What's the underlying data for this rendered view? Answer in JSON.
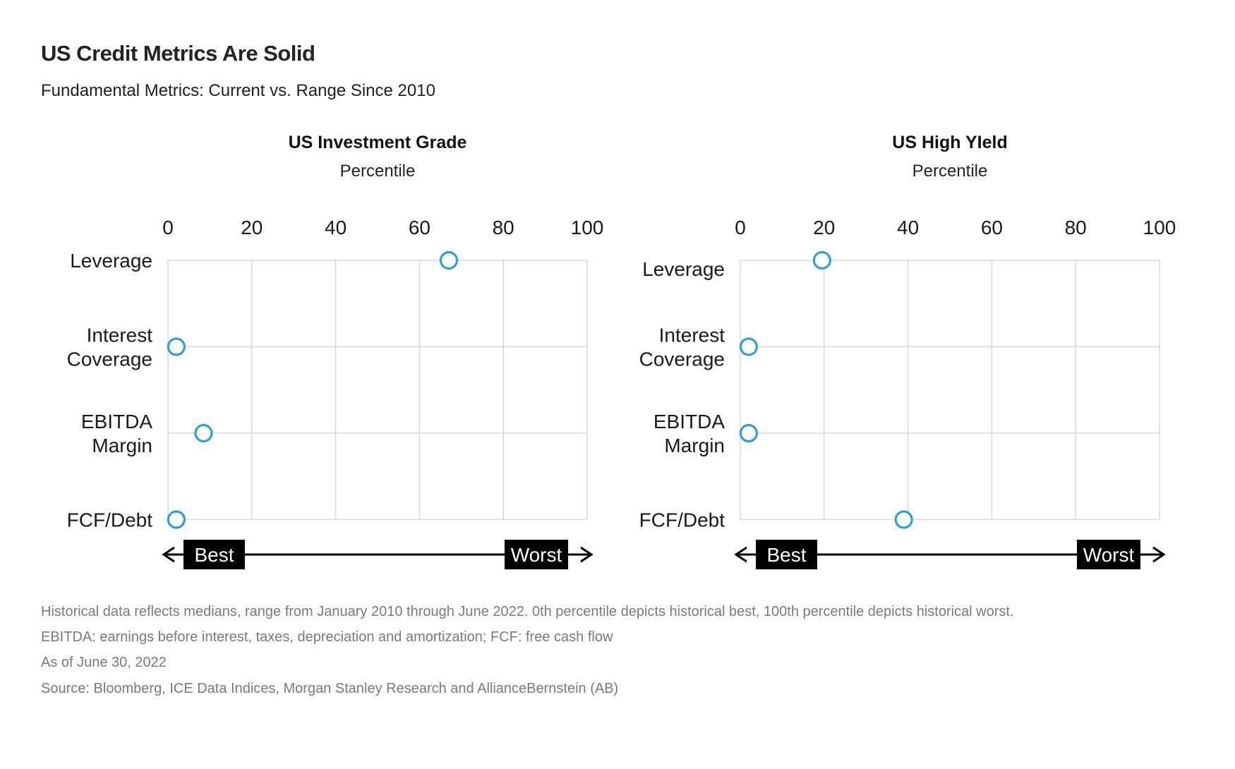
{
  "header": {
    "title": "US Credit Metrics Are Solid",
    "subtitle": "Fundamental Metrics: Current vs. Range Since 2010"
  },
  "colors": {
    "accent_point_stroke": "#2e9fd8",
    "gridline": "#d9d9d9",
    "axis_text": "#1a1a1a",
    "annotation_bg": "#000000",
    "annotation_text": "#ffffff",
    "footnote_text": "#7a7a7a"
  },
  "chart_data": [
    {
      "type": "scatter",
      "title": "US Investment Grade",
      "axis_label": "Percentile",
      "categories": [
        "Leverage",
        "Interest Coverage",
        "EBITDA Margin",
        "FCF/Debt"
      ],
      "category_lines": [
        [
          "Leverage"
        ],
        [
          "Interest",
          "Coverage"
        ],
        [
          "EBITDA",
          "Margin"
        ],
        [
          "FCF/Debt"
        ]
      ],
      "values": [
        67,
        2,
        8.5,
        2
      ],
      "xlim": [
        0,
        100
      ],
      "xticks": [
        0,
        20,
        40,
        60,
        80,
        100
      ],
      "grid": true,
      "point_style": "open-circle",
      "axis_annotations": {
        "left": "Best",
        "right": "Worst"
      }
    },
    {
      "type": "scatter",
      "title": "US High YIeld",
      "axis_label": "Percentile",
      "categories": [
        "Leverage",
        "Interest Coverage",
        "EBITDA Margin",
        "FCF/Debt"
      ],
      "category_lines": [
        [
          "Leverage"
        ],
        [
          "Interest",
          "Coverage"
        ],
        [
          "EBITDA",
          "Margin"
        ],
        [
          "FCF/Debt"
        ]
      ],
      "values": [
        19.5,
        2,
        2,
        39
      ],
      "xlim": [
        0,
        100
      ],
      "xticks": [
        0,
        20,
        40,
        60,
        80,
        100
      ],
      "grid": true,
      "point_style": "open-circle",
      "axis_annotations": {
        "left": "Best",
        "right": "Worst"
      }
    }
  ],
  "footnotes": [
    "Historical data reflects medians, range from January 2010 through June 2022. 0th percentile depicts historical best, 100th percentile depicts historical worst.",
    "EBITDA: earnings before interest, taxes, depreciation and amortization; FCF: free cash flow",
    "As of June 30, 2022",
    "Source: Bloomberg, ICE Data Indices, Morgan Stanley Research and AllianceBernstein (AB)"
  ]
}
